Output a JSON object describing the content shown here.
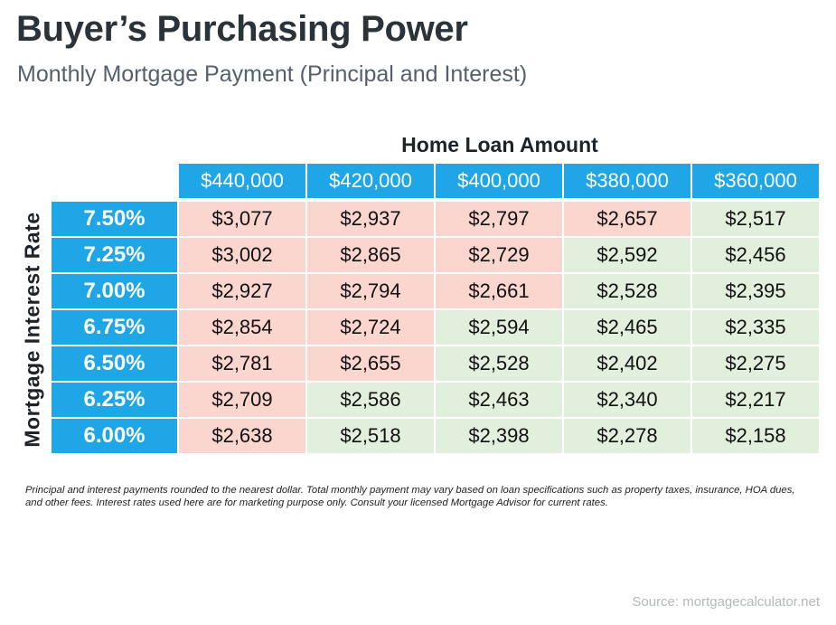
{
  "title": "Buyer’s Purchasing Power",
  "subtitle": "Monthly Mortgage Payment (Principal and Interest)",
  "column_group_label": "Home Loan Amount",
  "row_group_label": "Mortgage Interest Rate",
  "footnote": "Principal and interest payments rounded to the nearest dollar. Total monthly payment may vary based on loan specifications such as property taxes, insurance, HOA dues, and other fees. Interest rates used here are for marketing purpose only. Consult your licensed Mortgage Advisor for current rates.",
  "source": "Source: mortgagecalculator.net",
  "colors": {
    "header_blue": "#1ea6e6",
    "over_cell": "#fad6cf",
    "under_cell": "#e2efdc"
  },
  "chart_data": {
    "type": "table",
    "title": "Buyer’s Purchasing Power",
    "subtitle": "Monthly Mortgage Payment (Principal and Interest)",
    "column_header": "Home Loan Amount",
    "row_header": "Mortgage Interest Rate",
    "columns": [
      "$440,000",
      "$420,000",
      "$400,000",
      "$380,000",
      "$360,000"
    ],
    "rows": [
      {
        "rate": "7.50%",
        "values": [
          "$3,077",
          "$2,937",
          "$2,797",
          "$2,657",
          "$2,517"
        ],
        "shade": [
          "over",
          "over",
          "over",
          "over",
          "under"
        ]
      },
      {
        "rate": "7.25%",
        "values": [
          "$3,002",
          "$2,865",
          "$2,729",
          "$2,592",
          "$2,456"
        ],
        "shade": [
          "over",
          "over",
          "over",
          "under",
          "under"
        ]
      },
      {
        "rate": "7.00%",
        "values": [
          "$2,927",
          "$2,794",
          "$2,661",
          "$2,528",
          "$2,395"
        ],
        "shade": [
          "over",
          "over",
          "over",
          "under",
          "under"
        ]
      },
      {
        "rate": "6.75%",
        "values": [
          "$2,854",
          "$2,724",
          "$2,594",
          "$2,465",
          "$2,335"
        ],
        "shade": [
          "over",
          "over",
          "under",
          "under",
          "under"
        ]
      },
      {
        "rate": "6.50%",
        "values": [
          "$2,781",
          "$2,655",
          "$2,528",
          "$2,402",
          "$2,275"
        ],
        "shade": [
          "over",
          "over",
          "under",
          "under",
          "under"
        ]
      },
      {
        "rate": "6.25%",
        "values": [
          "$2,709",
          "$2,586",
          "$2,463",
          "$2,340",
          "$2,217"
        ],
        "shade": [
          "over",
          "under",
          "under",
          "under",
          "under"
        ]
      },
      {
        "rate": "6.00%",
        "values": [
          "$2,638",
          "$2,518",
          "$2,398",
          "$2,278",
          "$2,158"
        ],
        "shade": [
          "over",
          "under",
          "under",
          "under",
          "under"
        ]
      }
    ]
  }
}
